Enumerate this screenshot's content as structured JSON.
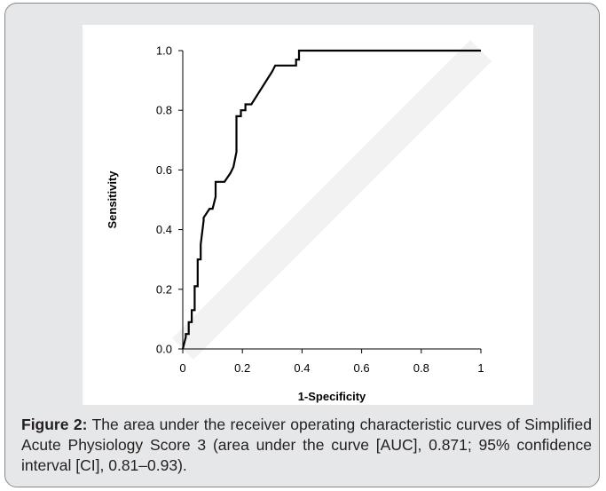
{
  "chart_data": {
    "type": "line",
    "xlabel": "1-Specificity",
    "ylabel": "Sensitivity",
    "xlim": [
      0,
      1
    ],
    "ylim": [
      0,
      1
    ],
    "x_ticks": [
      "0",
      "0.2",
      "0.4",
      "0.6",
      "0.8",
      "1"
    ],
    "y_ticks": [
      "0.0",
      "0.2",
      "0.4",
      "0.6",
      "0.8",
      "1.0"
    ],
    "grid": false,
    "legend": "none",
    "colors": {
      "roc": "#000000",
      "reference": "#f2f2f2"
    },
    "series": [
      {
        "x": [
          0,
          0.01,
          0.01,
          0.02,
          0.02,
          0.03,
          0.03,
          0.04,
          0.04,
          0.05,
          0.05,
          0.06,
          0.06,
          0.07,
          0.07,
          0.09,
          0.1,
          0.11,
          0.11,
          0.14,
          0.16,
          0.17,
          0.18,
          0.18,
          0.195,
          0.195,
          0.21,
          0.21,
          0.23,
          0.3,
          0.31,
          0.37,
          0.38,
          0.38,
          0.39,
          0.39,
          0.4,
          1.0
        ],
        "y": [
          0,
          0.04,
          0.05,
          0.05,
          0.09,
          0.09,
          0.13,
          0.13,
          0.21,
          0.21,
          0.3,
          0.3,
          0.35,
          0.43,
          0.44,
          0.47,
          0.47,
          0.51,
          0.56,
          0.56,
          0.59,
          0.61,
          0.66,
          0.78,
          0.78,
          0.8,
          0.8,
          0.82,
          0.82,
          0.93,
          0.95,
          0.95,
          0.95,
          0.97,
          0.97,
          1.0,
          1.0,
          1.0
        ]
      },
      {
        "x": [
          0,
          1
        ],
        "y": [
          0,
          1
        ]
      }
    ]
  },
  "caption": {
    "label": "Figure 2:",
    "text": " The area under the receiver operating characteristic curves of Simplified Acute Physiology Score 3 (area under the curve [AUC], 0.871; 95% confidence interval [CI], 0.81–0.93)."
  }
}
